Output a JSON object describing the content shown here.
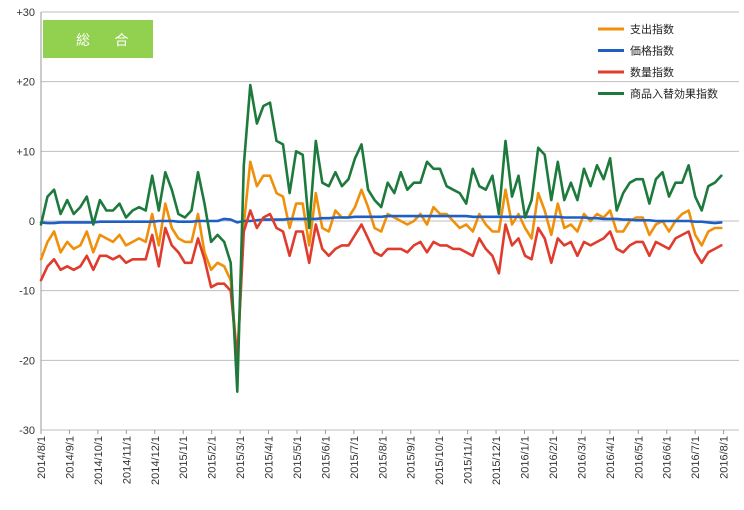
{
  "badge": {
    "label": "総 合",
    "color": "#92d050"
  },
  "chart_data": {
    "type": "line",
    "title": "",
    "xlabel": "",
    "ylabel": "",
    "ylim": [
      -30,
      30
    ],
    "y_ticks": [
      30,
      20,
      10,
      0,
      -10,
      -20,
      -30
    ],
    "y_tick_labels": [
      "+30",
      "+20",
      "+10",
      "0",
      "-10",
      "-20",
      "-30"
    ],
    "grid": "horizontal",
    "legend_position": "top-right",
    "x_tick_labels": [
      "2014/8/1",
      "2014/9/1",
      "2014/10/1",
      "2014/11/1",
      "2014/12/1",
      "2015/1/1",
      "2015/2/1",
      "2015/3/1",
      "2015/4/1",
      "2015/5/1",
      "2015/6/1",
      "2015/7/1",
      "2015/8/1",
      "2015/9/1",
      "2015/10/1",
      "2015/11/1",
      "2015/12/1",
      "2016/1/1",
      "2016/2/1",
      "2016/3/1",
      "2016/4/1",
      "2016/5/1",
      "2016/6/1",
      "2016/7/1",
      "2016/8/1"
    ],
    "x_range_weeks": [
      0,
      106.7
    ],
    "series": [
      {
        "name": "支出指数",
        "color": "#f0900a",
        "values": [
          -5.5,
          -3.0,
          -1.5,
          -4.5,
          -3.0,
          -4.0,
          -3.5,
          -1.5,
          -4.5,
          -2.0,
          -2.5,
          -3.0,
          -2.0,
          -3.5,
          -3.0,
          -2.5,
          -3.0,
          1.0,
          -3.5,
          2.5,
          -1.0,
          -2.5,
          -3.0,
          -3.0,
          1.0,
          -4.5,
          -7.0,
          -6.0,
          -6.5,
          -8.5,
          -20.0,
          -0.5,
          8.5,
          5.0,
          6.5,
          6.5,
          4.0,
          3.5,
          -1.0,
          2.5,
          2.5,
          -3.5,
          4.0,
          -1.0,
          -1.5,
          1.5,
          0.5,
          0.5,
          2.0,
          4.5,
          2.0,
          -1.0,
          -1.5,
          1.0,
          0.5,
          0.0,
          -0.5,
          0.0,
          1.0,
          -0.5,
          2.0,
          1.0,
          1.0,
          0.0,
          -1.0,
          -0.5,
          -1.5,
          1.0,
          -0.5,
          -1.5,
          -1.5,
          4.5,
          -0.5,
          1.0,
          -1.0,
          -2.5,
          4.0,
          1.5,
          -2.0,
          2.5,
          -1.0,
          -0.5,
          -1.5,
          1.0,
          0.0,
          1.0,
          0.5,
          1.5,
          -1.5,
          -1.5,
          0.0,
          0.5,
          0.5,
          -2.0,
          -0.5,
          0.0,
          -1.5,
          0.0,
          1.0,
          1.5,
          -2.0,
          -3.5,
          -1.5,
          -1.0,
          -1.0
        ]
      },
      {
        "name": "価格指数",
        "color": "#1f5fc4",
        "values": [
          -0.2,
          -0.3,
          -0.3,
          -0.2,
          -0.2,
          -0.2,
          -0.2,
          -0.2,
          -0.2,
          -0.1,
          -0.1,
          -0.1,
          -0.1,
          -0.1,
          -0.1,
          -0.1,
          -0.1,
          -0.1,
          0.0,
          0.0,
          0.0,
          -0.1,
          -0.1,
          -0.1,
          0.0,
          0.0,
          0.0,
          0.0,
          0.3,
          0.2,
          -0.2,
          0.0,
          0.0,
          0.1,
          0.2,
          0.2,
          0.2,
          0.2,
          0.3,
          0.3,
          0.3,
          0.3,
          0.3,
          0.4,
          0.4,
          0.5,
          0.5,
          0.5,
          0.6,
          0.6,
          0.6,
          0.6,
          0.6,
          0.7,
          0.7,
          0.7,
          0.7,
          0.7,
          0.7,
          0.7,
          0.7,
          0.7,
          0.7,
          0.7,
          0.7,
          0.7,
          0.6,
          0.6,
          0.6,
          0.6,
          0.6,
          0.6,
          0.6,
          0.6,
          0.6,
          0.6,
          0.6,
          0.6,
          0.6,
          0.6,
          0.5,
          0.5,
          0.5,
          0.5,
          0.4,
          0.4,
          0.3,
          0.3,
          0.3,
          0.2,
          0.2,
          0.1,
          0.1,
          0.1,
          0.0,
          0.0,
          0.0,
          0.0,
          0.0,
          0.0,
          -0.1,
          -0.1,
          -0.2,
          -0.3,
          -0.2
        ]
      },
      {
        "name": "数量指数",
        "color": "#e03c2e",
        "values": [
          -8.5,
          -6.5,
          -5.5,
          -7.0,
          -6.5,
          -7.0,
          -6.5,
          -5.0,
          -7.0,
          -5.0,
          -5.0,
          -5.5,
          -5.0,
          -6.0,
          -5.5,
          -5.5,
          -5.5,
          -2.0,
          -6.5,
          -1.0,
          -3.5,
          -4.5,
          -6.0,
          -6.0,
          -2.5,
          -5.5,
          -9.5,
          -9.0,
          -9.0,
          -10.0,
          -20.0,
          -1.5,
          1.5,
          -1.0,
          0.5,
          1.0,
          -1.0,
          -1.5,
          -5.0,
          -1.5,
          -1.5,
          -6.0,
          -0.5,
          -4.0,
          -5.0,
          -4.0,
          -3.5,
          -3.5,
          -2.0,
          -0.5,
          -2.5,
          -4.5,
          -5.0,
          -4.0,
          -4.0,
          -4.0,
          -4.5,
          -3.5,
          -3.0,
          -4.5,
          -3.0,
          -3.5,
          -3.5,
          -4.0,
          -4.0,
          -4.5,
          -5.0,
          -2.5,
          -4.0,
          -5.0,
          -7.5,
          -0.5,
          -3.5,
          -2.5,
          -5.0,
          -5.5,
          -1.0,
          -2.5,
          -6.0,
          -2.5,
          -3.5,
          -3.0,
          -5.0,
          -3.0,
          -3.5,
          -3.0,
          -2.5,
          -1.5,
          -4.0,
          -4.5,
          -3.5,
          -3.0,
          -3.0,
          -5.0,
          -3.0,
          -3.5,
          -4.0,
          -2.5,
          -2.0,
          -1.5,
          -4.5,
          -6.0,
          -4.5,
          -4.0,
          -3.5
        ]
      },
      {
        "name": "商品入替効果指数",
        "color": "#1e7a3c",
        "values": [
          -0.5,
          3.5,
          4.5,
          1.0,
          3.0,
          1.0,
          2.0,
          3.5,
          -0.5,
          3.0,
          1.5,
          1.5,
          2.5,
          0.5,
          1.5,
          2.0,
          1.5,
          6.5,
          1.5,
          7.0,
          4.5,
          1.0,
          0.5,
          1.5,
          7.0,
          2.5,
          -3.0,
          -2.0,
          -3.0,
          -6.0,
          -24.5,
          8.0,
          19.5,
          14.0,
          16.5,
          17.0,
          11.5,
          11.0,
          4.0,
          10.0,
          9.5,
          -1.0,
          11.5,
          5.5,
          5.0,
          7.0,
          5.0,
          6.0,
          9.0,
          11.0,
          4.5,
          3.0,
          2.0,
          5.5,
          4.0,
          7.0,
          4.5,
          5.5,
          5.5,
          8.5,
          7.5,
          7.5,
          5.0,
          4.5,
          4.0,
          2.5,
          7.5,
          5.0,
          4.5,
          6.5,
          1.0,
          11.5,
          3.5,
          6.5,
          0.5,
          3.0,
          10.5,
          9.5,
          3.0,
          8.5,
          3.0,
          5.5,
          3.0,
          7.5,
          5.0,
          8.0,
          6.0,
          9.0,
          1.5,
          4.0,
          5.5,
          6.0,
          6.0,
          2.5,
          6.0,
          7.0,
          3.5,
          5.5,
          5.5,
          8.0,
          3.5,
          1.5,
          5.0,
          5.5,
          6.5
        ]
      }
    ]
  }
}
